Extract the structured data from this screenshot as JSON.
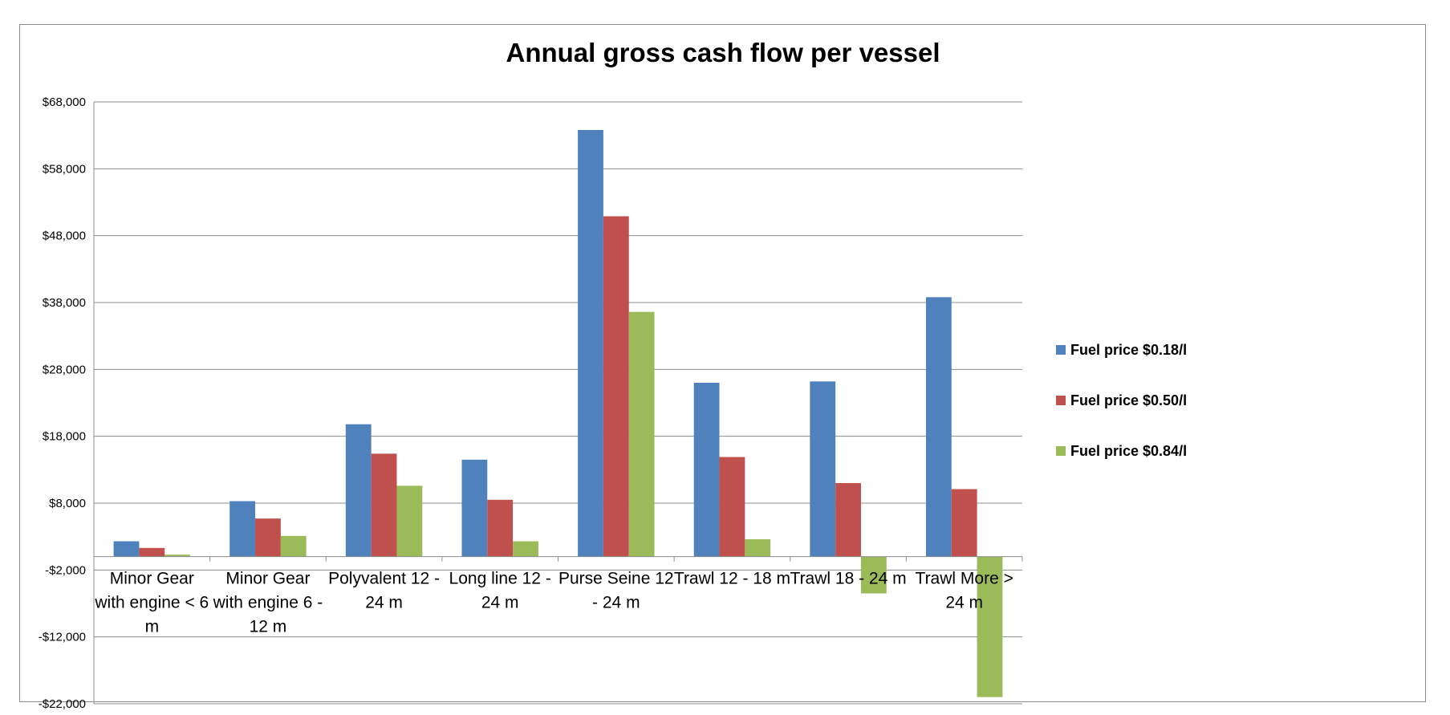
{
  "chart_data": {
    "type": "bar",
    "title": "Annual gross cash flow per vessel",
    "xlabel": "",
    "ylabel": "",
    "ylim": [
      -22000,
      68000
    ],
    "yticks": [
      -22000,
      -12000,
      -2000,
      8000,
      18000,
      28000,
      38000,
      48000,
      58000,
      68000
    ],
    "ytick_labels": [
      "-$22,000",
      "-$12,000",
      "-$2,000",
      "$8,000",
      "$18,000",
      "$28,000",
      "$38,000",
      "$48,000",
      "$58,000",
      "$68,000"
    ],
    "baseline": 0,
    "grid": true,
    "legend_position": "right",
    "categories": [
      "Minor Gear with engine < 6 m",
      "Minor Gear with engine 6 - 12 m",
      "Polyvalent 12 - 24 m",
      "Long line 12 - 24 m",
      "Purse Seine 12 - 24 m",
      "Trawl 12 - 18 m",
      "Trawl 18 - 24 m",
      "Trawl More > 24 m"
    ],
    "category_label_lines": [
      [
        "Minor Gear",
        "with engine < 6",
        "m"
      ],
      [
        "Minor Gear",
        "with engine 6 -",
        "12 m"
      ],
      [
        "Polyvalent 12 -",
        "24 m"
      ],
      [
        "Long line 12 -",
        "24 m"
      ],
      [
        "Purse Seine 12",
        "- 24 m"
      ],
      [
        "Trawl 12 - 18 m"
      ],
      [
        "Trawl 18 - 24 m"
      ],
      [
        "Trawl More >",
        "24 m"
      ]
    ],
    "series": [
      {
        "name": "Fuel price $0.18/l",
        "color": "#4f81bd",
        "values": [
          2300,
          8300,
          19800,
          14500,
          63800,
          26000,
          26200,
          38800
        ]
      },
      {
        "name": "Fuel price $0.50/l",
        "color": "#c0504d",
        "values": [
          1300,
          5700,
          15400,
          8500,
          50900,
          14900,
          11000,
          10100
        ]
      },
      {
        "name": "Fuel price $0.84/l",
        "color": "#9bbb59",
        "values": [
          300,
          3100,
          10600,
          2300,
          36600,
          2600,
          -5500,
          -21000
        ]
      }
    ]
  }
}
